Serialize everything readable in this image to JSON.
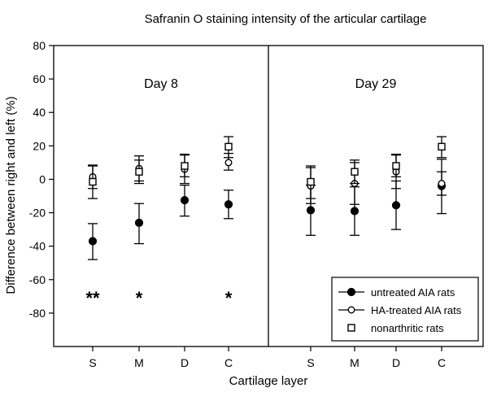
{
  "chart_data": {
    "type": "scatter",
    "title": "Safranin O staining intensity of the articular cartilage",
    "xlabel": "Cartilage layer",
    "ylabel": "Difference between right and left (%)",
    "ylim": [
      -100,
      80
    ],
    "yticks": [
      80,
      60,
      40,
      20,
      0,
      -20,
      -40,
      -60,
      -80
    ],
    "categories": [
      "S",
      "M",
      "D",
      "C"
    ],
    "panels": [
      {
        "label": "Day 8",
        "series": [
          {
            "name": "untreated AIA rats",
            "marker": "filled-circle",
            "values": [
              -37,
              -26,
              -12.5,
              -15
            ],
            "err_low": [
              -48,
              -38.5,
              -22,
              -23.5
            ],
            "err_high": [
              -26.5,
              -14.5,
              -3.5,
              -6.5
            ]
          },
          {
            "name": "HA-treated AIA rats",
            "marker": "open-circle",
            "values": [
              1.5,
              6.5,
              6,
              10
            ],
            "err_low": [
              -5.5,
              -1,
              -2.5,
              5.5
            ],
            "err_high": [
              8.5,
              14,
              14.5,
              15.5
            ]
          },
          {
            "name": "nonarthritic rats",
            "marker": "open-square",
            "values": [
              -1.5,
              4.5,
              8,
              19.5
            ],
            "err_low": [
              -11.5,
              -2.5,
              1.5,
              13
            ],
            "err_high": [
              8,
              11.5,
              15,
              25.5
            ]
          }
        ],
        "significance": [
          "**",
          "*",
          "",
          "*"
        ]
      },
      {
        "label": "Day 29",
        "series": [
          {
            "name": "untreated AIA rats",
            "marker": "filled-circle",
            "values": [
              -18.5,
              -19,
              -15.5,
              -4
            ],
            "err_low": [
              -33.5,
              -33.5,
              -30,
              -20.5
            ],
            "err_high": [
              -3.5,
              -4.5,
              -1,
              12
            ]
          },
          {
            "name": "HA-treated AIA rats",
            "marker": "open-circle",
            "values": [
              -4,
              -2.5,
              4.5,
              -2.5
            ],
            "err_low": [
              -14.5,
              -15,
              -5.5,
              -9.5
            ],
            "err_high": [
              7,
              10,
              14.5,
              4.5
            ]
          },
          {
            "name": "nonarthritic rats",
            "marker": "open-square",
            "values": [
              -1.5,
              4.5,
              8,
              19.5
            ],
            "err_low": [
              -11.5,
              -2.5,
              1.5,
              13
            ],
            "err_high": [
              8,
              11.5,
              15,
              25.5
            ]
          }
        ],
        "significance": [
          "",
          "",
          "",
          ""
        ]
      }
    ],
    "legend": {
      "position": "bottom-right",
      "entries": [
        "untreated AIA rats",
        "HA-treated AIA rats",
        "nonarthritic rats"
      ]
    },
    "grid": false
  }
}
